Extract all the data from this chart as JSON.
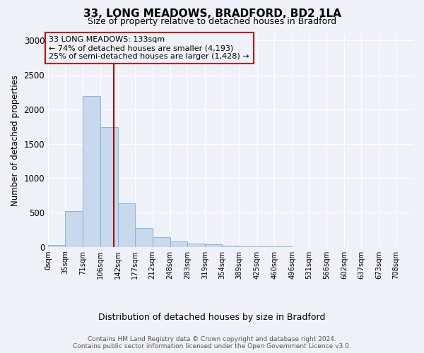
{
  "title_line1": "33, LONG MEADOWS, BRADFORD, BD2 1LA",
  "title_line2": "Size of property relative to detached houses in Bradford",
  "xlabel": "Distribution of detached houses by size in Bradford",
  "ylabel": "Number of detached properties",
  "bin_labels": [
    "0sqm",
    "35sqm",
    "71sqm",
    "106sqm",
    "142sqm",
    "177sqm",
    "212sqm",
    "248sqm",
    "283sqm",
    "319sqm",
    "354sqm",
    "389sqm",
    "425sqm",
    "460sqm",
    "496sqm",
    "531sqm",
    "566sqm",
    "602sqm",
    "637sqm",
    "673sqm",
    "708sqm"
  ],
  "bar_values": [
    25,
    520,
    2190,
    1740,
    630,
    275,
    140,
    80,
    50,
    35,
    15,
    10,
    5,
    3,
    2,
    1,
    1,
    0,
    0,
    0
  ],
  "bar_color": "#c8d9ed",
  "bar_edge_color": "#7aadd4",
  "vline_color": "#aa0000",
  "annotation_text": "33 LONG MEADOWS: 133sqm\n← 74% of detached houses are smaller (4,193)\n25% of semi-detached houses are larger (1,428) →",
  "annotation_box_color": "#cc0000",
  "ylim": [
    0,
    3100
  ],
  "yticks": [
    0,
    500,
    1000,
    1500,
    2000,
    2500,
    3000
  ],
  "footer_text": "Contains HM Land Registry data © Crown copyright and database right 2024.\nContains public sector information licensed under the Open Government Licence v3.0.",
  "background_color": "#eef2f8",
  "grid_color": "#ffffff"
}
